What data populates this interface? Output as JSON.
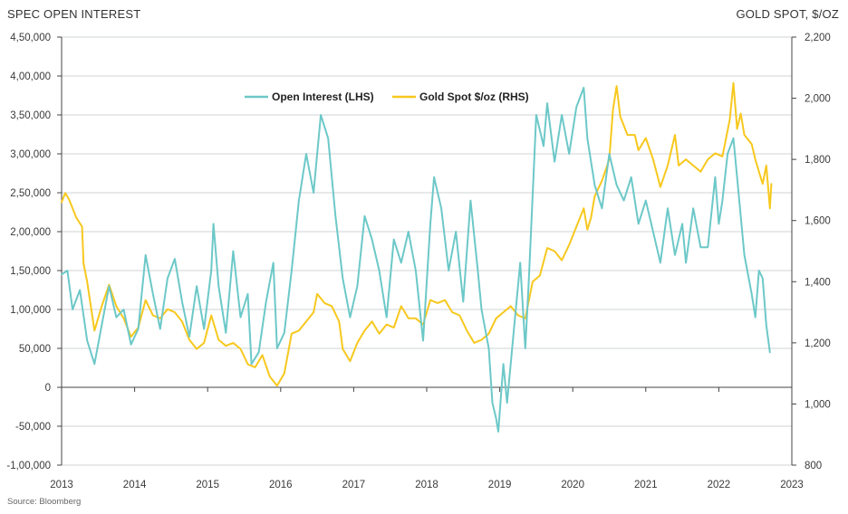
{
  "chart_data": {
    "type": "line",
    "title": "",
    "y_left_title": "SPEC OPEN INTEREST",
    "y_right_title": "GOLD SPOT, $/OZ",
    "source": "Source: Bloomberg",
    "y_left": {
      "min": -100000,
      "max": 450000,
      "step": 50000,
      "tick_labels": [
        "-1,00,000",
        "-50,000",
        "0",
        "50,000",
        "1,00,000",
        "1,50,000",
        "2,00,000",
        "2,50,000",
        "3,00,000",
        "3,50,000",
        "4,00,000",
        "4,50,000"
      ]
    },
    "y_right": {
      "min": 800,
      "max": 2200,
      "step": 200,
      "tick_labels": [
        "800",
        "1,000",
        "1,200",
        "1,400",
        "1,600",
        "1,800",
        "2,000",
        "2,200"
      ]
    },
    "x": {
      "min": 2013,
      "max": 2023,
      "tick_labels": [
        "2013",
        "2014",
        "2015",
        "2016",
        "2017",
        "2018",
        "2019",
        "2020",
        "2021",
        "2022",
        "2023"
      ]
    },
    "grid": "horizontal",
    "legend_position": "top-center",
    "colors": {
      "open_interest": "#6dc8c8",
      "gold_spot": "#f7c81e",
      "grid": "#cfd3d6",
      "axis": "#444444"
    },
    "series": [
      {
        "name": "Open Interest (LHS)",
        "axis": "left",
        "color": "#6dc8c8",
        "points": [
          [
            2013.0,
            145000
          ],
          [
            2013.08,
            150000
          ],
          [
            2013.15,
            100000
          ],
          [
            2013.25,
            125000
          ],
          [
            2013.35,
            60000
          ],
          [
            2013.45,
            30000
          ],
          [
            2013.55,
            80000
          ],
          [
            2013.65,
            130000
          ],
          [
            2013.75,
            90000
          ],
          [
            2013.85,
            100000
          ],
          [
            2013.95,
            55000
          ],
          [
            2014.05,
            75000
          ],
          [
            2014.15,
            170000
          ],
          [
            2014.25,
            120000
          ],
          [
            2014.35,
            75000
          ],
          [
            2014.45,
            140000
          ],
          [
            2014.55,
            165000
          ],
          [
            2014.65,
            110000
          ],
          [
            2014.75,
            65000
          ],
          [
            2014.85,
            130000
          ],
          [
            2014.95,
            75000
          ],
          [
            2015.05,
            150000
          ],
          [
            2015.08,
            210000
          ],
          [
            2015.15,
            130000
          ],
          [
            2015.25,
            70000
          ],
          [
            2015.35,
            175000
          ],
          [
            2015.45,
            90000
          ],
          [
            2015.55,
            120000
          ],
          [
            2015.6,
            30000
          ],
          [
            2015.7,
            45000
          ],
          [
            2015.8,
            110000
          ],
          [
            2015.9,
            160000
          ],
          [
            2015.95,
            50000
          ],
          [
            2016.05,
            70000
          ],
          [
            2016.15,
            150000
          ],
          [
            2016.25,
            240000
          ],
          [
            2016.35,
            300000
          ],
          [
            2016.45,
            250000
          ],
          [
            2016.55,
            350000
          ],
          [
            2016.65,
            320000
          ],
          [
            2016.75,
            220000
          ],
          [
            2016.85,
            140000
          ],
          [
            2016.95,
            90000
          ],
          [
            2017.05,
            130000
          ],
          [
            2017.15,
            220000
          ],
          [
            2017.25,
            190000
          ],
          [
            2017.35,
            150000
          ],
          [
            2017.45,
            90000
          ],
          [
            2017.55,
            190000
          ],
          [
            2017.65,
            160000
          ],
          [
            2017.75,
            200000
          ],
          [
            2017.85,
            150000
          ],
          [
            2017.95,
            60000
          ],
          [
            2018.05,
            210000
          ],
          [
            2018.1,
            270000
          ],
          [
            2018.2,
            230000
          ],
          [
            2018.3,
            150000
          ],
          [
            2018.4,
            200000
          ],
          [
            2018.5,
            110000
          ],
          [
            2018.6,
            240000
          ],
          [
            2018.7,
            150000
          ],
          [
            2018.75,
            100000
          ],
          [
            2018.85,
            50000
          ],
          [
            2018.9,
            -20000
          ],
          [
            2018.95,
            -40000
          ],
          [
            2018.98,
            -57000
          ],
          [
            2019.05,
            30000
          ],
          [
            2019.1,
            -20000
          ],
          [
            2019.2,
            80000
          ],
          [
            2019.28,
            160000
          ],
          [
            2019.35,
            50000
          ],
          [
            2019.4,
            140000
          ],
          [
            2019.5,
            350000
          ],
          [
            2019.6,
            310000
          ],
          [
            2019.65,
            365000
          ],
          [
            2019.75,
            290000
          ],
          [
            2019.85,
            350000
          ],
          [
            2019.95,
            300000
          ],
          [
            2020.05,
            360000
          ],
          [
            2020.15,
            385000
          ],
          [
            2020.2,
            320000
          ],
          [
            2020.3,
            260000
          ],
          [
            2020.4,
            230000
          ],
          [
            2020.5,
            300000
          ],
          [
            2020.6,
            260000
          ],
          [
            2020.7,
            240000
          ],
          [
            2020.8,
            270000
          ],
          [
            2020.9,
            210000
          ],
          [
            2021.0,
            240000
          ],
          [
            2021.1,
            200000
          ],
          [
            2021.2,
            160000
          ],
          [
            2021.3,
            230000
          ],
          [
            2021.4,
            170000
          ],
          [
            2021.5,
            210000
          ],
          [
            2021.55,
            160000
          ],
          [
            2021.65,
            230000
          ],
          [
            2021.75,
            180000
          ],
          [
            2021.85,
            180000
          ],
          [
            2021.95,
            270000
          ],
          [
            2022.0,
            210000
          ],
          [
            2022.05,
            240000
          ],
          [
            2022.12,
            300000
          ],
          [
            2022.2,
            320000
          ],
          [
            2022.25,
            270000
          ],
          [
            2022.35,
            170000
          ],
          [
            2022.45,
            120000
          ],
          [
            2022.5,
            90000
          ],
          [
            2022.55,
            150000
          ],
          [
            2022.6,
            140000
          ],
          [
            2022.65,
            80000
          ],
          [
            2022.7,
            45000
          ]
        ]
      },
      {
        "name": "Gold Spot $/oz (RHS)",
        "axis": "right",
        "color": "#f7c81e",
        "points": [
          [
            2013.0,
            1660
          ],
          [
            2013.05,
            1690
          ],
          [
            2013.1,
            1670
          ],
          [
            2013.2,
            1610
          ],
          [
            2013.28,
            1580
          ],
          [
            2013.3,
            1460
          ],
          [
            2013.35,
            1400
          ],
          [
            2013.45,
            1240
          ],
          [
            2013.55,
            1320
          ],
          [
            2013.65,
            1390
          ],
          [
            2013.75,
            1320
          ],
          [
            2013.85,
            1280
          ],
          [
            2013.95,
            1220
          ],
          [
            2014.05,
            1250
          ],
          [
            2014.15,
            1340
          ],
          [
            2014.25,
            1290
          ],
          [
            2014.35,
            1280
          ],
          [
            2014.45,
            1310
          ],
          [
            2014.55,
            1300
          ],
          [
            2014.65,
            1270
          ],
          [
            2014.75,
            1210
          ],
          [
            2014.85,
            1180
          ],
          [
            2014.95,
            1200
          ],
          [
            2015.05,
            1290
          ],
          [
            2015.15,
            1210
          ],
          [
            2015.25,
            1190
          ],
          [
            2015.35,
            1200
          ],
          [
            2015.45,
            1180
          ],
          [
            2015.55,
            1130
          ],
          [
            2015.65,
            1120
          ],
          [
            2015.75,
            1160
          ],
          [
            2015.85,
            1090
          ],
          [
            2015.95,
            1060
          ],
          [
            2016.05,
            1100
          ],
          [
            2016.15,
            1230
          ],
          [
            2016.25,
            1240
          ],
          [
            2016.35,
            1270
          ],
          [
            2016.45,
            1300
          ],
          [
            2016.5,
            1360
          ],
          [
            2016.6,
            1330
          ],
          [
            2016.7,
            1320
          ],
          [
            2016.8,
            1270
          ],
          [
            2016.85,
            1180
          ],
          [
            2016.95,
            1140
          ],
          [
            2017.05,
            1200
          ],
          [
            2017.15,
            1240
          ],
          [
            2017.25,
            1270
          ],
          [
            2017.35,
            1230
          ],
          [
            2017.45,
            1260
          ],
          [
            2017.55,
            1250
          ],
          [
            2017.65,
            1320
          ],
          [
            2017.75,
            1280
          ],
          [
            2017.85,
            1280
          ],
          [
            2017.95,
            1260
          ],
          [
            2018.05,
            1340
          ],
          [
            2018.15,
            1330
          ],
          [
            2018.25,
            1340
          ],
          [
            2018.35,
            1300
          ],
          [
            2018.45,
            1290
          ],
          [
            2018.55,
            1240
          ],
          [
            2018.65,
            1200
          ],
          [
            2018.75,
            1210
          ],
          [
            2018.85,
            1230
          ],
          [
            2018.95,
            1280
          ],
          [
            2019.05,
            1300
          ],
          [
            2019.15,
            1320
          ],
          [
            2019.25,
            1290
          ],
          [
            2019.35,
            1280
          ],
          [
            2019.45,
            1400
          ],
          [
            2019.55,
            1420
          ],
          [
            2019.65,
            1510
          ],
          [
            2019.75,
            1500
          ],
          [
            2019.85,
            1470
          ],
          [
            2019.95,
            1520
          ],
          [
            2020.05,
            1580
          ],
          [
            2020.15,
            1640
          ],
          [
            2020.2,
            1570
          ],
          [
            2020.25,
            1610
          ],
          [
            2020.3,
            1680
          ],
          [
            2020.4,
            1730
          ],
          [
            2020.5,
            1800
          ],
          [
            2020.55,
            1960
          ],
          [
            2020.6,
            2040
          ],
          [
            2020.65,
            1940
          ],
          [
            2020.75,
            1880
          ],
          [
            2020.85,
            1880
          ],
          [
            2020.9,
            1830
          ],
          [
            2021.0,
            1870
          ],
          [
            2021.1,
            1800
          ],
          [
            2021.2,
            1710
          ],
          [
            2021.3,
            1780
          ],
          [
            2021.4,
            1880
          ],
          [
            2021.45,
            1780
          ],
          [
            2021.55,
            1800
          ],
          [
            2021.65,
            1780
          ],
          [
            2021.75,
            1760
          ],
          [
            2021.85,
            1800
          ],
          [
            2021.95,
            1820
          ],
          [
            2022.05,
            1810
          ],
          [
            2022.15,
            1930
          ],
          [
            2022.2,
            2050
          ],
          [
            2022.25,
            1900
          ],
          [
            2022.3,
            1950
          ],
          [
            2022.35,
            1880
          ],
          [
            2022.45,
            1850
          ],
          [
            2022.5,
            1800
          ],
          [
            2022.55,
            1760
          ],
          [
            2022.6,
            1720
          ],
          [
            2022.65,
            1780
          ],
          [
            2022.7,
            1640
          ],
          [
            2022.72,
            1720
          ]
        ]
      }
    ]
  }
}
